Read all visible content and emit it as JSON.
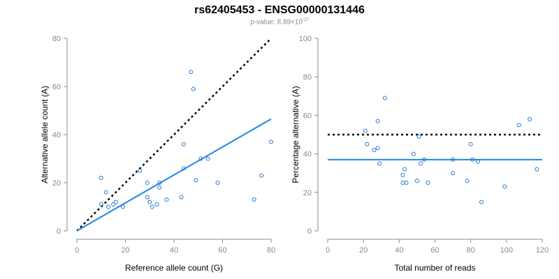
{
  "title": "rs62405453 - ENSG00000131446",
  "subtitle": {
    "prefix": "p-value: 8.89×10",
    "exponent": "-27"
  },
  "colors": {
    "points": "#1f77d0",
    "fit": "#1f86e6",
    "reference": "#000000",
    "axis": "#888888"
  },
  "chart_data": [
    {
      "type": "scatter",
      "xlabel": "Reference allele count (G)",
      "ylabel": "Alternative allele count (A)",
      "xlim": [
        0,
        80
      ],
      "ylim": [
        0,
        80
      ],
      "xticks": [
        0,
        20,
        40,
        60,
        80
      ],
      "yticks": [
        0,
        20,
        40,
        60,
        80
      ],
      "points": [
        [
          10,
          22
        ],
        [
          10,
          11
        ],
        [
          12,
          16
        ],
        [
          13,
          10
        ],
        [
          15,
          11
        ],
        [
          16,
          12
        ],
        [
          19,
          10
        ],
        [
          26,
          25
        ],
        [
          29,
          20
        ],
        [
          29,
          14
        ],
        [
          30,
          12
        ],
        [
          31,
          10
        ],
        [
          33,
          11
        ],
        [
          34,
          18
        ],
        [
          34,
          20
        ],
        [
          37,
          13
        ],
        [
          43,
          14
        ],
        [
          44,
          26
        ],
        [
          44,
          36
        ],
        [
          47,
          66
        ],
        [
          48,
          59
        ],
        [
          49,
          21
        ],
        [
          51,
          30
        ],
        [
          54,
          30
        ],
        [
          58,
          20
        ],
        [
          73,
          13
        ],
        [
          76,
          23
        ],
        [
          80,
          37
        ]
      ],
      "reference_line": {
        "x": [
          0,
          80
        ],
        "y": [
          0,
          80
        ],
        "style": "dotted"
      },
      "fit_line": {
        "x": [
          0,
          80
        ],
        "y": [
          0,
          46.5
        ],
        "style": "solid"
      },
      "grid": false
    },
    {
      "type": "scatter",
      "xlabel": "Total number of reads",
      "ylabel": "Percentage alternative (A)",
      "xlim": [
        0,
        120
      ],
      "ylim": [
        0,
        100
      ],
      "xticks": [
        0,
        20,
        40,
        60,
        80,
        100,
        120
      ],
      "yticks": [
        0,
        20,
        40,
        60,
        80,
        100
      ],
      "points": [
        [
          21,
          52
        ],
        [
          22,
          45
        ],
        [
          26,
          42
        ],
        [
          28,
          57
        ],
        [
          28,
          43
        ],
        [
          29,
          35
        ],
        [
          32,
          69
        ],
        [
          42,
          25
        ],
        [
          42,
          29
        ],
        [
          43,
          32
        ],
        [
          44,
          25
        ],
        [
          48,
          40
        ],
        [
          50,
          26
        ],
        [
          51,
          49
        ],
        [
          52,
          35
        ],
        [
          54,
          37
        ],
        [
          56,
          25
        ],
        [
          70,
          37
        ],
        [
          70,
          30
        ],
        [
          78,
          26
        ],
        [
          80,
          45
        ],
        [
          81,
          37
        ],
        [
          84,
          36
        ],
        [
          86,
          15
        ],
        [
          99,
          23
        ],
        [
          107,
          55
        ],
        [
          113,
          58
        ],
        [
          117,
          32
        ]
      ],
      "reference_line": {
        "x": [
          0,
          120
        ],
        "y": [
          50,
          50
        ],
        "style": "dotted"
      },
      "fit_line": {
        "x": [
          0,
          120
        ],
        "y": [
          37,
          37
        ],
        "style": "solid"
      },
      "grid": false
    }
  ]
}
